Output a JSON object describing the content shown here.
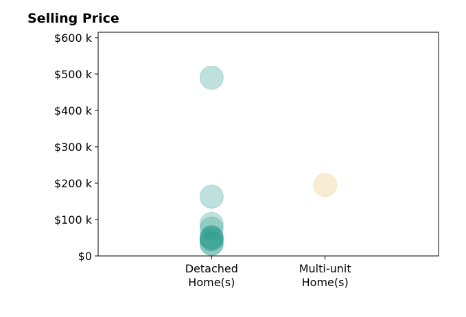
{
  "chart_data": {
    "type": "scatter",
    "title": "Selling Price",
    "categories": [
      "Detached\nHome(s)",
      "Multi-unit\nHome(s)"
    ],
    "ylim": [
      0,
      615000
    ],
    "yticks": [
      {
        "value": 0,
        "label": "$0"
      },
      {
        "value": 100000,
        "label": "$100 k"
      },
      {
        "value": 200000,
        "label": "$200 k"
      },
      {
        "value": 300000,
        "label": "$300 k"
      },
      {
        "value": 400000,
        "label": "$400 k"
      },
      {
        "value": 500000,
        "label": "$500 k"
      },
      {
        "value": 600000,
        "label": "$600 k"
      }
    ],
    "grid": false,
    "series": [
      {
        "category": "Detached\nHome(s)",
        "color": "#2a9d8f",
        "opacity": 0.3,
        "values": [
          490000,
          163000,
          88000,
          75000,
          52000,
          50000,
          48000,
          45000,
          35000,
          33000
        ]
      },
      {
        "category": "Multi-unit\nHome(s)",
        "color": "#e9c46a",
        "opacity": 0.3,
        "values": [
          195000
        ]
      }
    ]
  }
}
